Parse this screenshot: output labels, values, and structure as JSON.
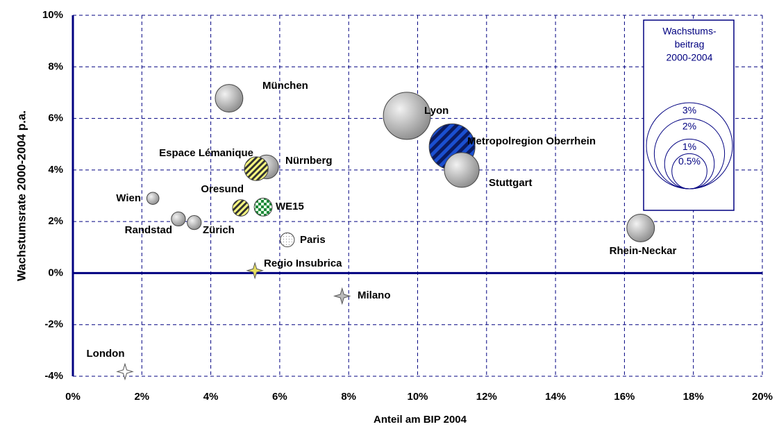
{
  "chart_data": {
    "type": "bubble",
    "x_label": "Anteil am BIP 2004",
    "y_label": "Wachstumsrate 2000-2004 p.a.",
    "xlim": [
      0,
      20
    ],
    "xticks": [
      {
        "value": 0,
        "label": "0%"
      },
      {
        "value": 2,
        "label": "2%"
      },
      {
        "value": 4,
        "label": "4%"
      },
      {
        "value": 6,
        "label": "6%"
      },
      {
        "value": 8,
        "label": "8%"
      },
      {
        "value": 10,
        "label": "10%"
      },
      {
        "value": 12,
        "label": "12%"
      },
      {
        "value": 14,
        "label": "14%"
      },
      {
        "value": 16,
        "label": "16%"
      },
      {
        "value": 18,
        "label": "18%"
      },
      {
        "value": 20,
        "label": "20%"
      }
    ],
    "ylim": [
      -4,
      10
    ],
    "yticks": [
      {
        "value": -4,
        "label": "-4%"
      },
      {
        "value": -2,
        "label": "-2%"
      },
      {
        "value": 0,
        "label": "0%"
      },
      {
        "value": 2,
        "label": "2%"
      },
      {
        "value": 4,
        "label": "4%"
      },
      {
        "value": 6,
        "label": "6%"
      },
      {
        "value": 8,
        "label": "8%"
      },
      {
        "value": 10,
        "label": "10%"
      }
    ],
    "grid": true,
    "points": [
      {
        "name": "München",
        "x": 4.53,
        "y": 6.78,
        "size": 0.31,
        "style": "gray"
      },
      {
        "name": "Lyon",
        "x": 9.69,
        "y": 6.1,
        "size": 0.9,
        "style": "gray"
      },
      {
        "name": "Metropolregion Oberrhein",
        "x": 11.0,
        "y": 4.9,
        "size": 0.85,
        "style": "blue-stripe"
      },
      {
        "name": "Stuttgart",
        "x": 11.28,
        "y": 4.0,
        "size": 0.49,
        "style": "gray"
      },
      {
        "name": "Nürnberg",
        "x": 5.62,
        "y": 4.12,
        "size": 0.23,
        "style": "gray"
      },
      {
        "name": "Espace Lémanique",
        "x": 5.32,
        "y": 4.05,
        "size": 0.23,
        "style": "yellow-hatch"
      },
      {
        "name": "Wien",
        "x": 2.32,
        "y": 2.9,
        "size": 0.06,
        "style": "gray"
      },
      {
        "name": "Oresund",
        "x": 4.87,
        "y": 2.53,
        "size": 0.11,
        "style": "yellow-hatch"
      },
      {
        "name": "WE15",
        "x": 5.52,
        "y": 2.56,
        "size": 0.13,
        "style": "green-check"
      },
      {
        "name": "Randstad",
        "x": 3.06,
        "y": 2.1,
        "size": 0.08,
        "style": "gray"
      },
      {
        "name": "Zürich",
        "x": 3.52,
        "y": 1.96,
        "size": 0.08,
        "style": "gray"
      },
      {
        "name": "Paris",
        "x": 6.22,
        "y": 1.29,
        "size": 0.08,
        "style": "white-dot"
      },
      {
        "name": "Rhein-Neckar",
        "x": 16.47,
        "y": 1.75,
        "size": 0.31,
        "style": "gray"
      },
      {
        "name": "Regio Insubrica",
        "x": 5.28,
        "y": 0.1,
        "style": "star-yellow"
      },
      {
        "name": "Milano",
        "x": 7.81,
        "y": -0.89,
        "style": "star-gray"
      },
      {
        "name": "London",
        "x": 1.51,
        "y": -3.82,
        "style": "star-white"
      }
    ],
    "size_legend": {
      "title": [
        "Wachstums-",
        "beitrag",
        "2000-2004"
      ],
      "sizes": [
        {
          "value": 3,
          "label": "3%"
        },
        {
          "value": 2,
          "label": "2%"
        },
        {
          "value": 1,
          "label": "1%"
        },
        {
          "value": 0.5,
          "label": "0.5%"
        }
      ],
      "color": "#000080"
    }
  }
}
